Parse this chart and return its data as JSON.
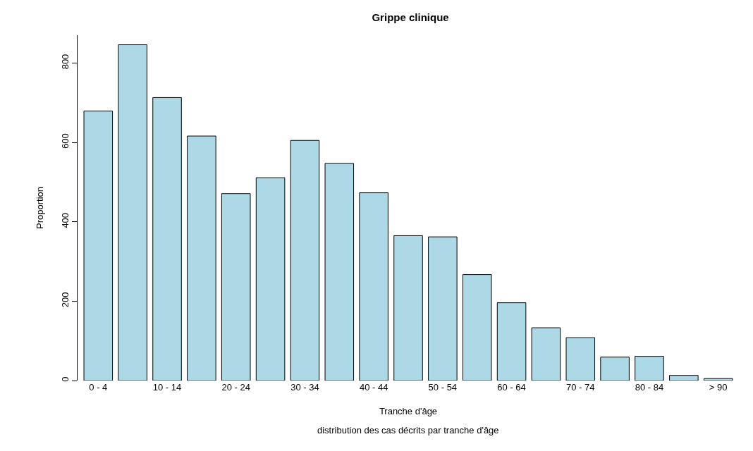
{
  "chart_data": {
    "type": "bar",
    "title": "Grippe clinique",
    "xlabel": "Tranche d'âge",
    "ylabel": "Proportion",
    "annotations": [
      "distribution des cas décrits par tranche d'âge"
    ],
    "categories": [
      "0 - 4",
      null,
      "10 - 14",
      null,
      "20 - 24",
      null,
      "30 - 34",
      null,
      "40 - 44",
      null,
      "50 - 54",
      null,
      "60 - 64",
      null,
      "70 - 74",
      null,
      "80 - 84",
      null,
      "> 90"
    ],
    "values": [
      679,
      846,
      713,
      616,
      471,
      511,
      605,
      547,
      473,
      365,
      362,
      267,
      196,
      133,
      108,
      59,
      61,
      13,
      5
    ],
    "color": "#add8e6",
    "ylim": [
      0,
      870
    ],
    "yticks": [
      0,
      200,
      400,
      600,
      800
    ]
  }
}
